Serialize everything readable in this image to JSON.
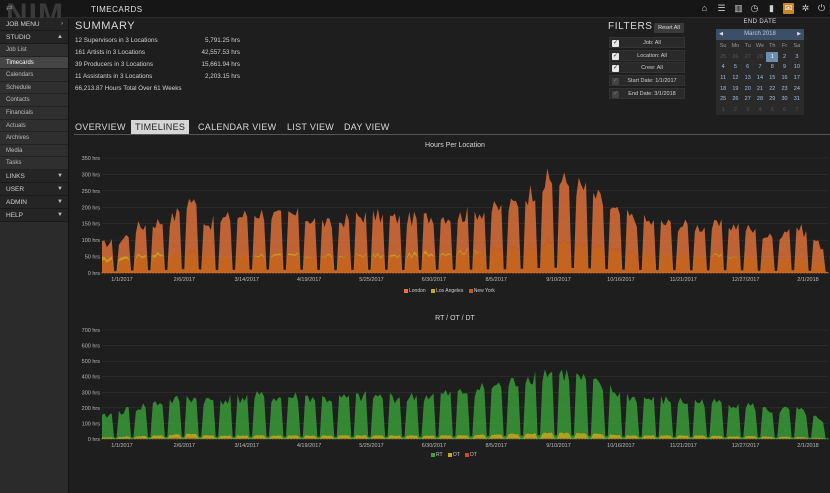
{
  "app": {
    "logo": "NIM",
    "title": "TIMECARDS"
  },
  "topbar_icons": [
    "home-icon",
    "list-icon",
    "columns-icon",
    "clock-icon",
    "bookmark-icon",
    "mail-icon",
    "gear-icon",
    "power-icon"
  ],
  "sidebar": {
    "job_menu": "JOB MENU",
    "studio": "STUDIO",
    "items": [
      "Job List",
      "Timecards",
      "Calendars",
      "Schedule",
      "Contacts",
      "Financials",
      "Actuals",
      "Archives",
      "Media",
      "Tasks"
    ],
    "active_item": "Timecards",
    "sections": [
      "LINKS",
      "USER",
      "ADMIN",
      "HELP"
    ]
  },
  "summary": {
    "title": "SUMMARY",
    "rows": [
      {
        "label": "12 Supervisors in 3 Locations",
        "value": "5,791.25 hrs"
      },
      {
        "label": "161 Artists in 3 Locations",
        "value": "42,557.53 hrs"
      },
      {
        "label": "39 Producers in 3 Locations",
        "value": "15,661.94 hrs"
      },
      {
        "label": "11 Assistants in 3 Locations",
        "value": "2,203.15 hrs"
      }
    ],
    "total": "66,213.87 Hours Total Over 61 Weeks"
  },
  "filters": {
    "title": "FILTERS",
    "reset_label": "Reset All",
    "items": [
      "Job: All",
      "Location: All",
      "Crew: All",
      "Start Date: 1/1/2017",
      "End Date: 3/1/2018"
    ]
  },
  "calendar": {
    "title": "END DATE",
    "month": "March 2018",
    "prev": "◀",
    "next": "▶",
    "day_headers": [
      "Su",
      "Mo",
      "Tu",
      "We",
      "Th",
      "Fr",
      "Sa"
    ],
    "days": [
      "25",
      "26",
      "27",
      "28",
      "1",
      "2",
      "3",
      "4",
      "5",
      "6",
      "7",
      "8",
      "9",
      "10",
      "11",
      "12",
      "13",
      "14",
      "15",
      "16",
      "17",
      "18",
      "19",
      "20",
      "21",
      "22",
      "23",
      "24",
      "25",
      "26",
      "27",
      "28",
      "29",
      "30",
      "31",
      "1",
      "2",
      "3",
      "4",
      "5",
      "6",
      "7"
    ],
    "selected": "1"
  },
  "tabs": [
    "OVERVIEW",
    "TIMELINES",
    "CALENDAR VIEW",
    "LIST VIEW",
    "DAY VIEW"
  ],
  "active_tab": "TIMELINES",
  "colors": {
    "london": "#e8743a",
    "los_angeles": "#c8a61c",
    "new_york": "#c35a1e",
    "rt": "#3aa33a",
    "ot": "#c8a61c",
    "dt": "#d04a2a"
  },
  "chart_data": [
    {
      "type": "area",
      "title": "Hours Per Location",
      "ylim": [
        0,
        350
      ],
      "yticks": [
        "0 hrs",
        "50 hrs",
        "100 hrs",
        "150 hrs",
        "200 hrs",
        "250 hrs",
        "300 hrs",
        "350 hrs"
      ],
      "xticks": [
        "1/1/2017",
        "2/6/2017",
        "3/14/2017",
        "4/19/2017",
        "5/25/2017",
        "6/30/2017",
        "8/5/2017",
        "9/10/2017",
        "10/16/2017",
        "11/21/2017",
        "12/27/2017",
        "2/1/2018"
      ],
      "series": [
        {
          "name": "London",
          "values": [
            100,
            110,
            160,
            175,
            190,
            260,
            170,
            190,
            200,
            210,
            195,
            200,
            185,
            165,
            190,
            200,
            195,
            185,
            190,
            200,
            195,
            210,
            220,
            230,
            270,
            320,
            320,
            300,
            260,
            210,
            190,
            175,
            170,
            165,
            160,
            165,
            165,
            140,
            120,
            170,
            130,
            70
          ]
        },
        {
          "name": "Los Angeles",
          "values": [
            50,
            55,
            60,
            70,
            65,
            70,
            60,
            55,
            60,
            65,
            60,
            65,
            55,
            60,
            60,
            65,
            60,
            60,
            70,
            70,
            75,
            80,
            75,
            80,
            90,
            100,
            105,
            95,
            85,
            75,
            65,
            65,
            60,
            60,
            60,
            60,
            55,
            50,
            45,
            55,
            40,
            25
          ]
        },
        {
          "name": "New York",
          "values": [
            40,
            45,
            55,
            60,
            65,
            80,
            60,
            55,
            60,
            60,
            55,
            60,
            55,
            55,
            60,
            60,
            55,
            55,
            60,
            65,
            70,
            75,
            80,
            85,
            95,
            110,
            110,
            100,
            90,
            80,
            70,
            65,
            60,
            60,
            60,
            55,
            55,
            50,
            45,
            55,
            40,
            25
          ]
        }
      ],
      "legend": [
        "London",
        "Los Angeles",
        "New York"
      ]
    },
    {
      "type": "area",
      "title": "RT / OT / DT",
      "ylim": [
        0,
        700
      ],
      "yticks": [
        "0 hrs",
        "100 hrs",
        "200 hrs",
        "300 hrs",
        "400 hrs",
        "500 hrs",
        "600 hrs",
        "700 hrs"
      ],
      "xticks": [
        "1/1/2017",
        "2/6/2017",
        "3/14/2017",
        "4/19/2017",
        "5/25/2017",
        "6/30/2017",
        "8/5/2017",
        "9/10/2017",
        "10/16/2017",
        "11/21/2017",
        "12/27/2017",
        "2/1/2018"
      ],
      "series": [
        {
          "name": "RT",
          "values": [
            160,
            200,
            230,
            260,
            280,
            300,
            280,
            290,
            300,
            310,
            300,
            310,
            300,
            290,
            300,
            310,
            310,
            300,
            310,
            320,
            330,
            360,
            380,
            400,
            450,
            490,
            480,
            440,
            390,
            340,
            300,
            290,
            280,
            270,
            270,
            260,
            260,
            230,
            200,
            220,
            180,
            90
          ]
        },
        {
          "name": "OT",
          "values": [
            10,
            15,
            20,
            25,
            30,
            40,
            25,
            25,
            25,
            25,
            25,
            25,
            25,
            25,
            25,
            25,
            25,
            25,
            25,
            25,
            25,
            30,
            30,
            35,
            40,
            45,
            45,
            40,
            35,
            30,
            25,
            25,
            25,
            25,
            25,
            20,
            20,
            20,
            15,
            15,
            10,
            5
          ]
        },
        {
          "name": "DT",
          "values": [
            2,
            3,
            5,
            5,
            8,
            10,
            5,
            5,
            5,
            5,
            5,
            5,
            5,
            5,
            5,
            5,
            5,
            5,
            5,
            5,
            5,
            5,
            5,
            5,
            5,
            5,
            5,
            5,
            5,
            5,
            5,
            5,
            5,
            5,
            5,
            5,
            5,
            5,
            5,
            5,
            5,
            2
          ]
        }
      ],
      "legend": [
        "RT",
        "OT",
        "DT"
      ]
    }
  ]
}
